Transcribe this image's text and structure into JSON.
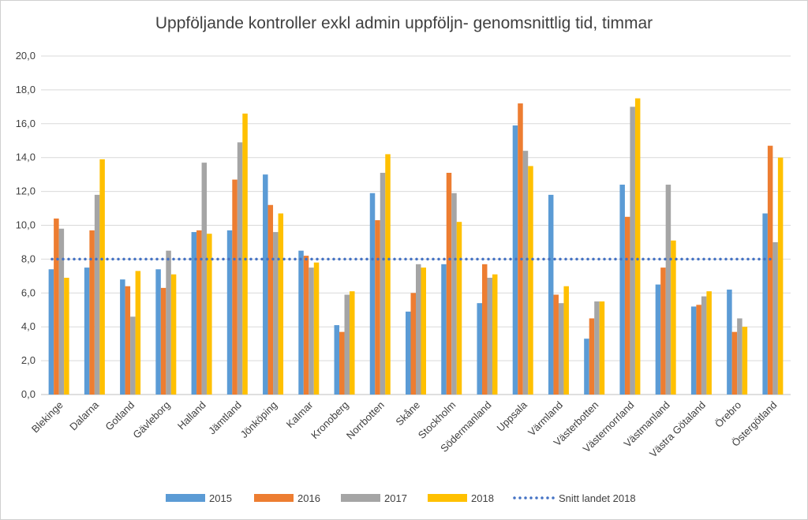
{
  "chart_data": {
    "type": "bar",
    "title": "Uppföljande kontroller exkl admin uppföljn- genomsnittlig tid, timmar",
    "xlabel": "",
    "ylabel": "",
    "ylim": [
      0,
      20
    ],
    "ytick_labels": [
      "0,0",
      "2,0",
      "4,0",
      "6,0",
      "8,0",
      "10,0",
      "12,0",
      "14,0",
      "16,0",
      "18,0",
      "20,0"
    ],
    "grid": true,
    "legend_position": "bottom",
    "categories": [
      "Blekinge",
      "Dalarna",
      "Gotland",
      "Gävleborg",
      "Halland",
      "Jämtland",
      "Jönköping",
      "Kalmar",
      "Kronoberg",
      "Norrbotten",
      "Skåne",
      "Stockholm",
      "Södermanland",
      "Uppsala",
      "Värmland",
      "Västerbotten",
      "Västernorrland",
      "Västmanland",
      "Västra Götaland",
      "Örebro",
      "Östergötland"
    ],
    "series": [
      {
        "name": "2015",
        "color": "#5b9bd5",
        "values": [
          7.4,
          7.5,
          6.8,
          7.4,
          9.6,
          9.7,
          13.0,
          8.5,
          4.1,
          11.9,
          4.9,
          7.7,
          5.4,
          15.9,
          11.8,
          3.3,
          12.4,
          6.5,
          5.2,
          6.2,
          10.7
        ]
      },
      {
        "name": "2016",
        "color": "#ed7d31",
        "values": [
          10.4,
          9.7,
          6.4,
          6.3,
          9.7,
          12.7,
          11.2,
          8.2,
          3.7,
          10.3,
          6.0,
          13.1,
          7.7,
          17.2,
          5.9,
          4.5,
          10.5,
          7.5,
          5.3,
          3.7,
          14.7
        ]
      },
      {
        "name": "2017",
        "color": "#a5a5a5",
        "values": [
          9.8,
          11.8,
          4.6,
          8.5,
          13.7,
          14.9,
          9.6,
          7.5,
          5.9,
          13.1,
          7.7,
          11.9,
          6.9,
          14.4,
          5.4,
          5.5,
          17.0,
          12.4,
          5.8,
          4.5,
          9.0
        ]
      },
      {
        "name": "2018",
        "color": "#ffc000",
        "values": [
          6.9,
          13.9,
          7.3,
          7.1,
          9.5,
          16.6,
          10.7,
          7.8,
          6.1,
          14.2,
          7.5,
          10.2,
          7.1,
          13.5,
          6.4,
          5.5,
          17.5,
          9.1,
          6.1,
          4.0,
          14.0
        ]
      }
    ],
    "reference_line": {
      "name": "Snitt landet 2018",
      "value": 8.0,
      "color": "#4472c4",
      "style": "dotted"
    }
  }
}
